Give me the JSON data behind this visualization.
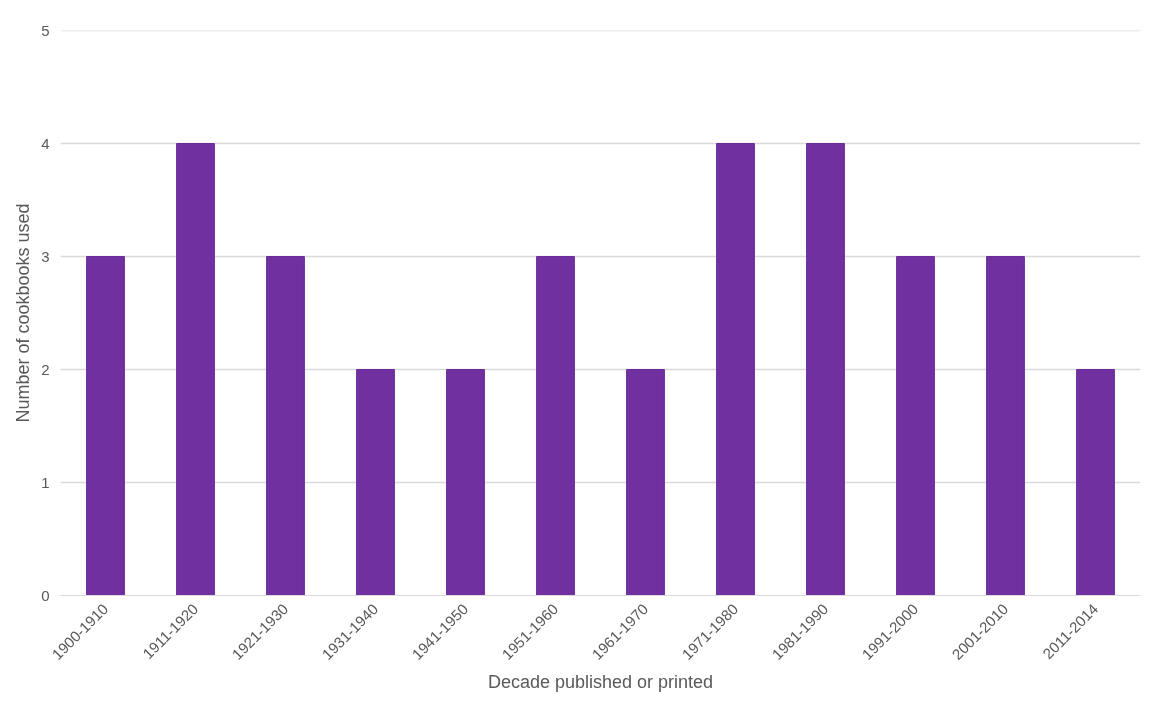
{
  "chart_data": {
    "type": "bar",
    "xlabel": "Decade published or printed",
    "ylabel": "Number of cookbooks used",
    "categories": [
      "1900-1910",
      "1911-1920",
      "1921-1930",
      "1931-1940",
      "1941-1950",
      "1951-1960",
      "1961-1970",
      "1971-1980",
      "1981-1990",
      "1991-2000",
      "2001-2010",
      "2011-2014"
    ],
    "values": [
      3,
      4,
      3,
      2,
      2,
      3,
      2,
      4,
      4,
      3,
      3,
      2
    ],
    "color": "#7030a0",
    "ylim": [
      0,
      5
    ],
    "yticks": [
      0,
      1,
      2,
      3,
      4,
      5
    ],
    "grid": "y"
  }
}
